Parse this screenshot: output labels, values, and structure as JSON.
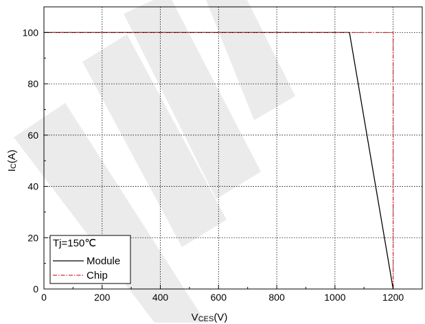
{
  "chart_data": {
    "type": "line",
    "xlabel_main": "V",
    "xlabel_sub": "CES",
    "xlabel_unit": "(V)",
    "ylabel_main": "I",
    "ylabel_sub": "C",
    "ylabel_unit": "(A)",
    "xlim": [
      0,
      1300
    ],
    "ylim": [
      0,
      110
    ],
    "x_ticks": [
      0,
      200,
      400,
      600,
      800,
      1000,
      1200
    ],
    "y_ticks": [
      0,
      20,
      40,
      60,
      80,
      100
    ],
    "grid": true,
    "legend": {
      "placement": "bottom-left",
      "title": "Tj=150℃"
    },
    "series": [
      {
        "name": "Module",
        "color": "#000000",
        "style": "solid",
        "points": [
          [
            0,
            100
          ],
          [
            1050,
            100
          ],
          [
            1200,
            0
          ]
        ]
      },
      {
        "name": "Chip",
        "color": "#d62728",
        "style": "dashed",
        "points": [
          [
            0,
            100
          ],
          [
            1200,
            100
          ],
          [
            1200,
            0
          ]
        ]
      }
    ]
  }
}
